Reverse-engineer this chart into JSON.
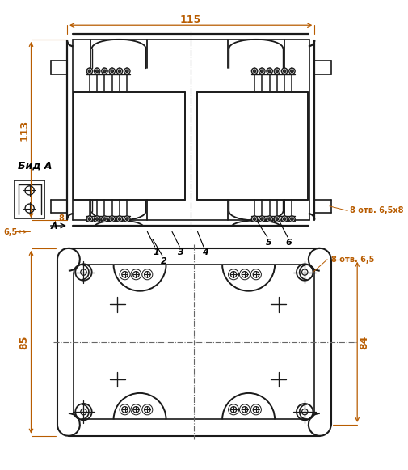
{
  "bg_color": "#ffffff",
  "line_color": "#1a1a1a",
  "dim_color": "#b85c00",
  "text_color": "#000000",
  "dimensions": {
    "width_115": "115",
    "height_113": "113",
    "height_85": "85",
    "height_84": "84",
    "dim_8": "8",
    "dim_6_5": "6,5",
    "holes_top": "8 отв. 6,5х8",
    "holes_bottom": "8 отв. 6,5"
  },
  "labels": {
    "vid_a": "Бид А",
    "label_A": "A",
    "num_1": "1",
    "num_2": "2",
    "num_3": "3",
    "num_4": "4",
    "num_5": "5",
    "num_6": "6"
  }
}
